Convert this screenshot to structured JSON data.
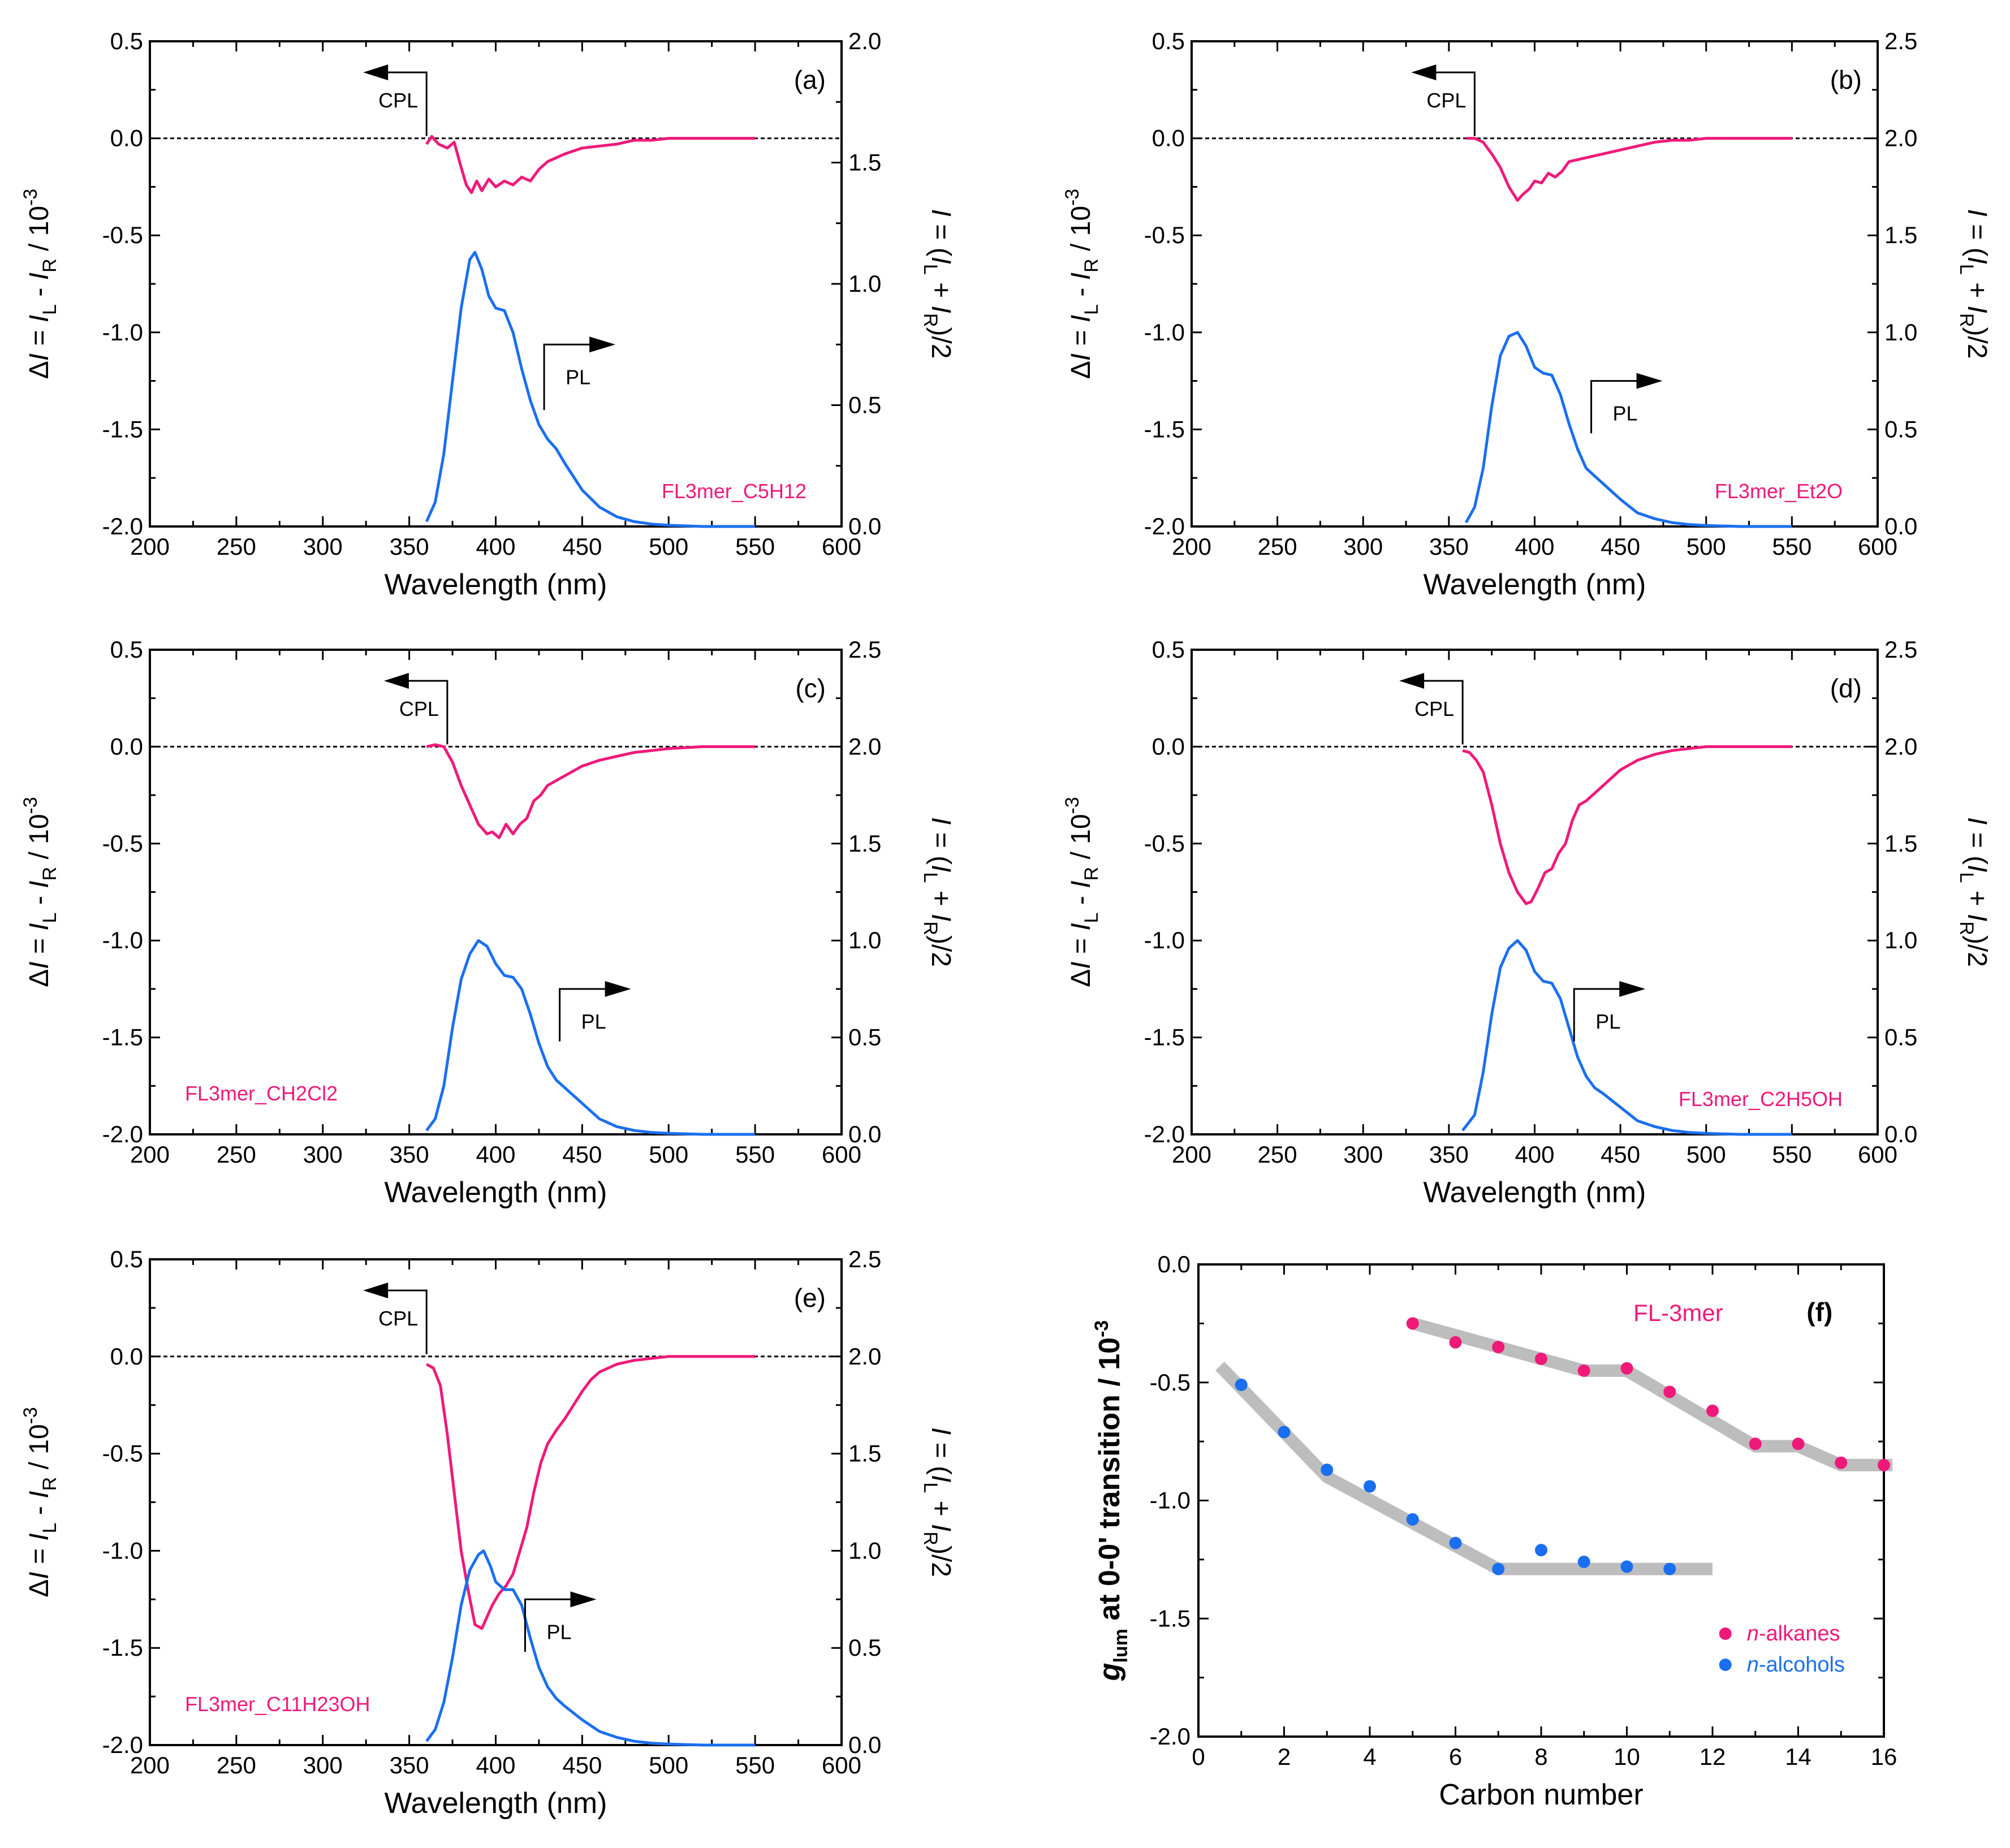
{
  "colors": {
    "cpl": "#F0197A",
    "pl": "#1A6FF0",
    "alkanes": "#F0197A",
    "alcohols": "#1A6FF0",
    "trend": "#BDBDBD",
    "axis": "#000000"
  },
  "common": {
    "xlabel": "Wavelength (nm)",
    "ylabel_left": "ΔI = I_L - I_R / 10^-3",
    "ylabel_right": "I = (I_L + I_R)/2",
    "cpl_arrow_label": "CPL",
    "pl_arrow_label": "PL"
  },
  "chart_data": [
    {
      "type": "line",
      "panel": "(a)",
      "sample": "FL3mer_C5H12",
      "x_range": [
        200,
        600
      ],
      "x_ticks": [
        200,
        250,
        300,
        350,
        400,
        450,
        500,
        550,
        600
      ],
      "y_left_range": [
        -2.0,
        0.5
      ],
      "y_left_ticks": [
        0.5,
        0.0,
        -0.5,
        -1.0,
        -1.5,
        -2.0
      ],
      "y_right_range": [
        0.0,
        2.0
      ],
      "y_right_ticks": [
        2.0,
        1.5,
        1.0,
        0.5,
        0.0
      ],
      "cpl_arrow_at": 360,
      "pl_arrow_at": 428,
      "series": [
        {
          "name": "CPL",
          "axis": "left",
          "x": [
            360,
            363,
            367,
            372,
            376,
            380,
            383,
            386,
            389,
            392,
            396,
            400,
            405,
            410,
            415,
            420,
            425,
            430,
            440,
            450,
            460,
            470,
            480,
            490,
            500,
            520,
            550
          ],
          "y": [
            -0.03,
            0.01,
            -0.03,
            -0.05,
            -0.02,
            -0.15,
            -0.24,
            -0.28,
            -0.22,
            -0.27,
            -0.21,
            -0.25,
            -0.22,
            -0.24,
            -0.2,
            -0.22,
            -0.16,
            -0.12,
            -0.08,
            -0.05,
            -0.04,
            -0.03,
            -0.01,
            -0.01,
            0.0,
            0.0,
            0.0
          ]
        },
        {
          "name": "PL",
          "axis": "right",
          "x": [
            360,
            365,
            370,
            375,
            380,
            385,
            388,
            392,
            396,
            400,
            405,
            410,
            415,
            420,
            425,
            430,
            435,
            440,
            450,
            460,
            470,
            480,
            490,
            500,
            520,
            550
          ],
          "y": [
            0.02,
            0.1,
            0.3,
            0.6,
            0.9,
            1.1,
            1.13,
            1.06,
            0.95,
            0.9,
            0.89,
            0.8,
            0.65,
            0.52,
            0.42,
            0.36,
            0.32,
            0.26,
            0.15,
            0.08,
            0.04,
            0.02,
            0.01,
            0.005,
            0.0,
            0.0
          ]
        }
      ]
    },
    {
      "type": "line",
      "panel": "(b)",
      "sample": "FL3mer_Et2O",
      "x_range": [
        200,
        600
      ],
      "x_ticks": [
        200,
        250,
        300,
        350,
        400,
        450,
        500,
        550,
        600
      ],
      "y_left_range": [
        -2.0,
        0.5
      ],
      "y_left_ticks": [
        0.5,
        0.0,
        -0.5,
        -1.0,
        -1.5,
        -2.0
      ],
      "y_right_range": [
        0.0,
        2.5
      ],
      "y_right_ticks": [
        2.5,
        2.0,
        1.5,
        1.0,
        0.5,
        0.0
      ],
      "cpl_arrow_at": 365,
      "pl_arrow_at": 433,
      "series": [
        {
          "name": "CPL",
          "axis": "left",
          "x": [
            360,
            365,
            370,
            375,
            380,
            385,
            390,
            393,
            397,
            400,
            404,
            408,
            412,
            416,
            420,
            425,
            430,
            440,
            450,
            460,
            470,
            480,
            490,
            500,
            520,
            550
          ],
          "y": [
            0.0,
            0.0,
            -0.02,
            -0.08,
            -0.15,
            -0.25,
            -0.32,
            -0.29,
            -0.26,
            -0.22,
            -0.23,
            -0.18,
            -0.2,
            -0.17,
            -0.12,
            -0.11,
            -0.1,
            -0.08,
            -0.06,
            -0.04,
            -0.02,
            -0.01,
            -0.01,
            0.0,
            0.0,
            0.0
          ]
        },
        {
          "name": "PL",
          "axis": "right",
          "x": [
            360,
            365,
            370,
            375,
            380,
            385,
            390,
            395,
            400,
            405,
            410,
            415,
            420,
            425,
            430,
            435,
            440,
            450,
            460,
            470,
            480,
            490,
            500,
            520,
            550
          ],
          "y": [
            0.02,
            0.1,
            0.3,
            0.62,
            0.88,
            0.98,
            1.0,
            0.93,
            0.82,
            0.79,
            0.78,
            0.68,
            0.53,
            0.4,
            0.3,
            0.26,
            0.22,
            0.14,
            0.07,
            0.04,
            0.02,
            0.01,
            0.005,
            0.0,
            0.0
          ]
        }
      ]
    },
    {
      "type": "line",
      "panel": "(c)",
      "sample": "FL3mer_CH2Cl2",
      "x_range": [
        200,
        600
      ],
      "x_ticks": [
        200,
        250,
        300,
        350,
        400,
        450,
        500,
        550,
        600
      ],
      "y_left_range": [
        -2.0,
        0.5
      ],
      "y_left_ticks": [
        0.5,
        0.0,
        -0.5,
        -1.0,
        -1.5,
        -2.0
      ],
      "y_right_range": [
        0.0,
        2.5
      ],
      "y_right_ticks": [
        2.5,
        2.0,
        1.5,
        1.0,
        0.5,
        0.0
      ],
      "cpl_arrow_at": 372,
      "pl_arrow_at": 437,
      "series": [
        {
          "name": "CPL",
          "axis": "left",
          "x": [
            360,
            365,
            370,
            375,
            380,
            385,
            390,
            395,
            398,
            402,
            406,
            410,
            414,
            418,
            422,
            426,
            430,
            440,
            450,
            460,
            470,
            480,
            490,
            500,
            520,
            550
          ],
          "y": [
            0.0,
            0.01,
            0.0,
            -0.08,
            -0.2,
            -0.3,
            -0.4,
            -0.45,
            -0.44,
            -0.47,
            -0.4,
            -0.45,
            -0.4,
            -0.37,
            -0.28,
            -0.25,
            -0.2,
            -0.15,
            -0.1,
            -0.07,
            -0.05,
            -0.03,
            -0.02,
            -0.01,
            0.0,
            0.0
          ]
        },
        {
          "name": "PL",
          "axis": "right",
          "x": [
            360,
            365,
            370,
            375,
            380,
            385,
            390,
            395,
            400,
            405,
            410,
            415,
            420,
            425,
            430,
            435,
            440,
            450,
            460,
            470,
            480,
            490,
            500,
            520,
            550
          ],
          "y": [
            0.02,
            0.08,
            0.25,
            0.55,
            0.8,
            0.93,
            1.0,
            0.97,
            0.88,
            0.82,
            0.81,
            0.75,
            0.62,
            0.47,
            0.35,
            0.28,
            0.24,
            0.16,
            0.08,
            0.04,
            0.02,
            0.01,
            0.005,
            0.0,
            0.0
          ]
        }
      ]
    },
    {
      "type": "line",
      "panel": "(d)",
      "sample": "FL3mer_C2H5OH",
      "x_range": [
        200,
        600
      ],
      "x_ticks": [
        200,
        250,
        300,
        350,
        400,
        450,
        500,
        550,
        600
      ],
      "y_left_range": [
        -2.0,
        0.5
      ],
      "y_left_ticks": [
        0.5,
        0.0,
        -0.5,
        -1.0,
        -1.5,
        -2.0
      ],
      "y_right_range": [
        0.0,
        2.5
      ],
      "y_right_ticks": [
        2.5,
        2.0,
        1.5,
        1.0,
        0.5,
        0.0
      ],
      "cpl_arrow_at": 358,
      "pl_arrow_at": 423,
      "series": [
        {
          "name": "CPL",
          "axis": "left",
          "x": [
            358,
            362,
            366,
            370,
            375,
            380,
            385,
            390,
            395,
            398,
            402,
            406,
            410,
            414,
            418,
            422,
            426,
            430,
            440,
            450,
            460,
            470,
            480,
            490,
            500,
            520,
            550
          ],
          "y": [
            -0.02,
            -0.03,
            -0.07,
            -0.13,
            -0.3,
            -0.5,
            -0.65,
            -0.75,
            -0.81,
            -0.8,
            -0.73,
            -0.65,
            -0.63,
            -0.55,
            -0.5,
            -0.38,
            -0.3,
            -0.28,
            -0.2,
            -0.12,
            -0.07,
            -0.04,
            -0.02,
            -0.01,
            0.0,
            0.0,
            0.0
          ]
        },
        {
          "name": "PL",
          "axis": "right",
          "x": [
            358,
            365,
            370,
            375,
            380,
            385,
            390,
            395,
            400,
            405,
            410,
            415,
            420,
            425,
            430,
            435,
            440,
            450,
            460,
            470,
            480,
            490,
            500,
            520,
            550
          ],
          "y": [
            0.02,
            0.1,
            0.32,
            0.62,
            0.86,
            0.96,
            1.0,
            0.95,
            0.84,
            0.79,
            0.78,
            0.7,
            0.55,
            0.4,
            0.3,
            0.24,
            0.21,
            0.14,
            0.07,
            0.04,
            0.02,
            0.01,
            0.005,
            0.0,
            0.0
          ]
        }
      ]
    },
    {
      "type": "line",
      "panel": "(e)",
      "sample": "FL3mer_C11H23OH",
      "x_range": [
        200,
        600
      ],
      "x_ticks": [
        200,
        250,
        300,
        350,
        400,
        450,
        500,
        550,
        600
      ],
      "y_left_range": [
        -2.0,
        0.5
      ],
      "y_left_ticks": [
        0.5,
        0.0,
        -0.5,
        -1.0,
        -1.5,
        -2.0
      ],
      "y_right_range": [
        0.0,
        2.5
      ],
      "y_right_ticks": [
        2.5,
        2.0,
        1.5,
        1.0,
        0.5,
        0.0
      ],
      "cpl_arrow_at": 360,
      "pl_arrow_at": 417,
      "series": [
        {
          "name": "CPL",
          "axis": "left",
          "x": [
            360,
            364,
            368,
            372,
            376,
            380,
            384,
            388,
            392,
            395,
            398,
            402,
            406,
            410,
            414,
            418,
            422,
            426,
            430,
            435,
            440,
            445,
            450,
            455,
            460,
            470,
            480,
            490,
            500,
            520,
            550
          ],
          "y": [
            -0.04,
            -0.06,
            -0.15,
            -0.4,
            -0.7,
            -1.0,
            -1.2,
            -1.38,
            -1.4,
            -1.34,
            -1.28,
            -1.22,
            -1.18,
            -1.12,
            -1.0,
            -0.88,
            -0.7,
            -0.55,
            -0.45,
            -0.38,
            -0.32,
            -0.25,
            -0.18,
            -0.12,
            -0.08,
            -0.04,
            -0.02,
            -0.01,
            0.0,
            0.0,
            0.0
          ]
        },
        {
          "name": "PL",
          "axis": "right",
          "x": [
            360,
            365,
            370,
            375,
            380,
            385,
            390,
            393,
            397,
            400,
            405,
            410,
            415,
            420,
            425,
            430,
            435,
            440,
            450,
            460,
            470,
            480,
            490,
            500,
            520,
            550
          ],
          "y": [
            0.02,
            0.08,
            0.22,
            0.45,
            0.72,
            0.9,
            0.98,
            1.0,
            0.92,
            0.84,
            0.8,
            0.8,
            0.72,
            0.55,
            0.4,
            0.3,
            0.24,
            0.2,
            0.13,
            0.07,
            0.04,
            0.02,
            0.01,
            0.005,
            0.0,
            0.0
          ]
        }
      ]
    },
    {
      "type": "scatter",
      "panel": "(f)",
      "title": "FL-3mer",
      "xlabel": "Carbon number",
      "ylabel": "g_lum at 0-0' transition / 10^-3",
      "x_range": [
        0,
        16
      ],
      "x_ticks": [
        0,
        2,
        4,
        6,
        8,
        10,
        12,
        14,
        16
      ],
      "y_range": [
        -2.0,
        0.0
      ],
      "y_ticks": [
        0.0,
        -0.5,
        -1.0,
        -1.5,
        -2.0
      ],
      "legend_position": "bottom-right",
      "series": [
        {
          "name": "n-alkanes",
          "name_prefix": "n",
          "name_rest": "-alkanes",
          "x": [
            5,
            6,
            7,
            8,
            9,
            10,
            11,
            12,
            13,
            14,
            15,
            16
          ],
          "y": [
            -0.25,
            -0.33,
            -0.35,
            -0.4,
            -0.45,
            -0.44,
            -0.54,
            -0.62,
            -0.76,
            -0.76,
            -0.84,
            -0.85
          ]
        },
        {
          "name": "n-alcohols",
          "name_prefix": "n",
          "name_rest": "-alcohols",
          "x": [
            1,
            2,
            3,
            4,
            5,
            6,
            7,
            8,
            9,
            10,
            11
          ],
          "y": [
            -0.51,
            -0.71,
            -0.87,
            -0.94,
            -1.08,
            -1.18,
            -1.29,
            -1.21,
            -1.26,
            -1.28,
            -1.29
          ]
        }
      ],
      "trend_lines": [
        {
          "name": "alkanes-trend",
          "x": [
            5,
            9,
            10,
            13,
            14,
            15,
            16.2
          ],
          "y": [
            -0.25,
            -0.45,
            -0.45,
            -0.77,
            -0.77,
            -0.85,
            -0.85
          ]
        },
        {
          "name": "alcohols-trend",
          "x": [
            0.5,
            3,
            7,
            12
          ],
          "y": [
            -0.43,
            -0.9,
            -1.29,
            -1.29
          ]
        }
      ]
    }
  ]
}
